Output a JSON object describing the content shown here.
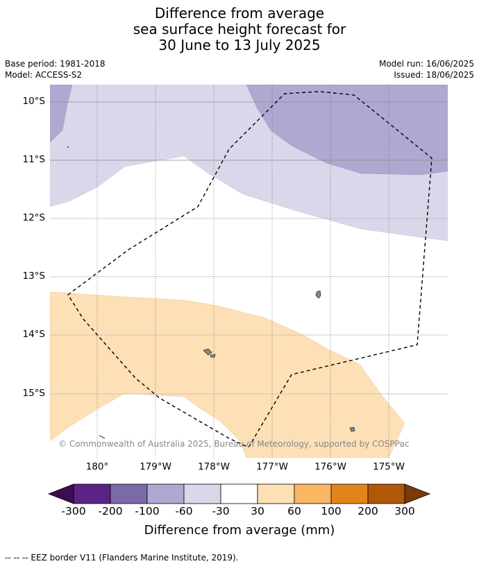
{
  "title": {
    "line1": "Difference from average",
    "line2": "sea surface height forecast for",
    "line3": "30 June to 13 July 2025"
  },
  "meta": {
    "base_period": "Base period: 1981-2018",
    "model": "Model: ACCESS-S2",
    "model_run": "Model run: 16/06/2025",
    "issued": "Issued: 18/06/2025"
  },
  "lat_labels": [
    "10°S",
    "11°S",
    "12°S",
    "13°S",
    "14°S",
    "15°S"
  ],
  "lon_labels": [
    "180°",
    "179°W",
    "178°W",
    "177°W",
    "176°W",
    "175°W"
  ],
  "copyright": "© Commonwealth of Australia 2025, Bureau of Meteorology, supported by COSPPac",
  "colorbar": {
    "labels": [
      "-300",
      "-200",
      "-100",
      "-60",
      "-30",
      "30",
      "60",
      "100",
      "200",
      "300"
    ],
    "colors": [
      "#3b0f4f",
      "#5c2386",
      "#7b6aa8",
      "#b0a8d1",
      "#d8d8ea",
      "#ffffff",
      "#fde0b6",
      "#f9b663",
      "#e3841b",
      "#b05708",
      "#7b3a08"
    ],
    "title": "Difference from average (mm)"
  },
  "legend": {
    "eez": "--  --  -- EEZ border V11 (Flanders Marine Institute, 2019)."
  },
  "palette": {
    "light_purple": "#d8d8ea",
    "mid_purple": "#b0a8d1",
    "light_orange": "#fde0b6",
    "land": "#888888",
    "gridline": "#888888"
  }
}
